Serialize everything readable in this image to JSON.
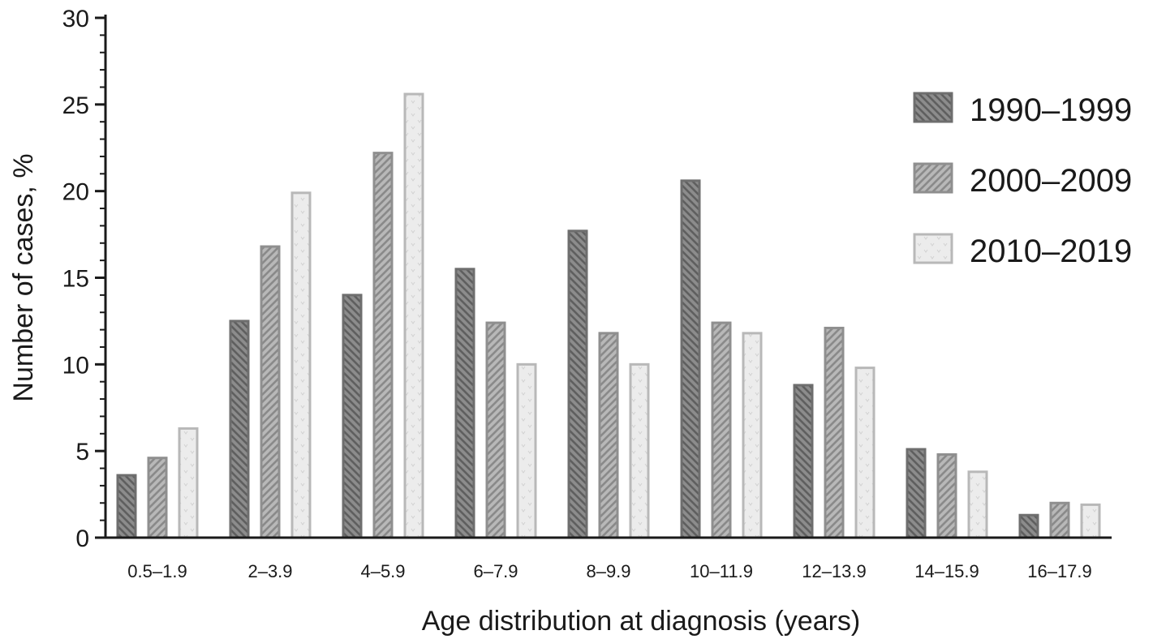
{
  "chart_data": {
    "type": "bar",
    "xlabel": "Age distribution at diagnosis (years)",
    "ylabel": "Number of cases, %",
    "ylim": [
      0,
      30
    ],
    "yticks": [
      0,
      5,
      10,
      15,
      20,
      25,
      30
    ],
    "grid": false,
    "legend_position": "right",
    "categories": [
      "0.5–1.9",
      "2–3.9",
      "4–5.9",
      "6–7.9",
      "8–9.9",
      "10–11.9",
      "12–13.9",
      "14–15.9",
      "16–17.9"
    ],
    "series": [
      {
        "name": "1990–1999",
        "values": [
          3.6,
          12.5,
          14.0,
          15.5,
          17.7,
          20.6,
          8.8,
          5.1,
          1.3
        ],
        "fill": "#8c8c8c",
        "stroke": "#6e6e6e",
        "pattern": "back-diagonal"
      },
      {
        "name": "2000–2009",
        "values": [
          4.6,
          16.8,
          22.2,
          12.4,
          11.8,
          12.4,
          12.1,
          4.8,
          2.0
        ],
        "fill": "#b5b5b5",
        "stroke": "#8f8f8f",
        "pattern": "forward-diagonal"
      },
      {
        "name": "2010–2019",
        "values": [
          6.3,
          19.9,
          25.6,
          10.0,
          10.0,
          11.8,
          9.8,
          3.8,
          1.9
        ],
        "fill": "#ebebeb",
        "stroke": "#b8b8b8",
        "pattern": "dots"
      }
    ]
  }
}
